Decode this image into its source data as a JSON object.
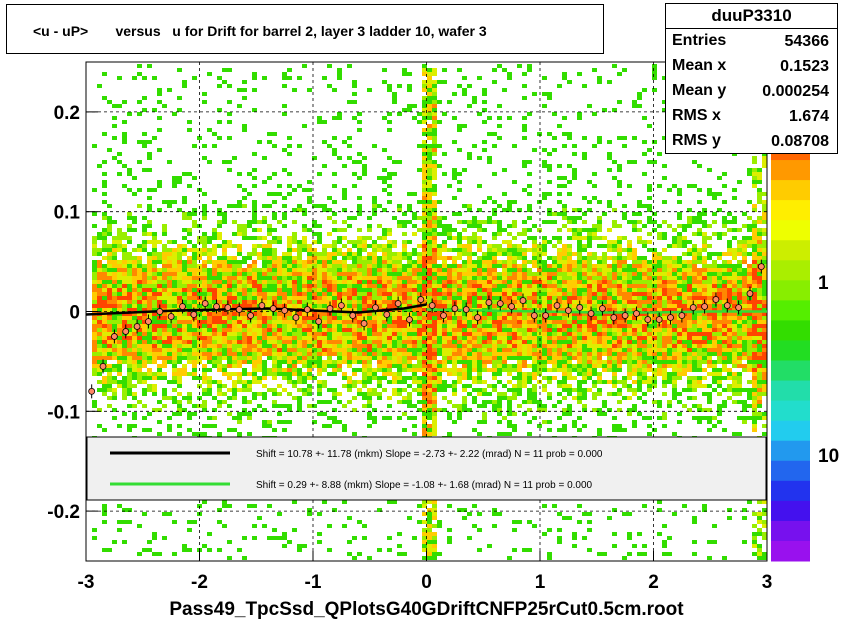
{
  "title": "<u - uP>       versus   u for Drift for barrel 2, layer 3 ladder 10, wafer 3",
  "stats": {
    "name": "duuP3310",
    "rows": [
      {
        "label": "Entries",
        "value": "54366"
      },
      {
        "label": "Mean x",
        "value": "0.1523"
      },
      {
        "label": "Mean y",
        "value": "0.000254"
      },
      {
        "label": "RMS x",
        "value": "1.674"
      },
      {
        "label": "RMS y",
        "value": "0.08708"
      }
    ]
  },
  "footer": "Pass49_TpcSsd_QPlotsG40GDriftCNFP25rCut0.5cm.root",
  "chart_data": {
    "type": "heatmap",
    "title": "<u - uP>       versus   u for Drift for barrel 2, layer 3 ladder 10, wafer 3",
    "xlabel": "",
    "ylabel": "",
    "xlim": [
      -3,
      3
    ],
    "ylim": [
      -0.25,
      0.25
    ],
    "x_ticks": [
      "-3",
      "-2",
      "-1",
      "0",
      "1",
      "2",
      "3"
    ],
    "y_ticks": [
      "-0.2",
      "-0.1",
      "0",
      "0.1",
      "0.2"
    ],
    "colorbar_ticks": [
      "1",
      "10"
    ],
    "grid": true,
    "legend": {
      "placement": "bottom",
      "entries": [
        {
          "color": "#000000",
          "text": "Shift =    10.78 +- 11.78 (mkm) Slope =    -2.73 +- 2.22 (mrad)  N = 11 prob = 0.000"
        },
        {
          "color": "#33dd33",
          "text": "Shift =    0.29 +- 8.88 (mkm) Slope =    -1.08 +- 1.68 (mrad)  N = 11 prob = 0.000"
        }
      ]
    },
    "series": [
      {
        "color": "#000000",
        "x": [
          -3.0,
          -2.6,
          -2.2,
          -1.8,
          -1.4,
          -1.0,
          -0.6,
          -0.2,
          0.0
        ],
        "y": [
          -0.003,
          -0.001,
          0.001,
          0.002,
          0.003,
          0.001,
          -0.001,
          0.003,
          0.007
        ]
      },
      {
        "color": "#33dd33",
        "x": [
          0.0,
          0.5,
          1.0,
          1.5,
          2.0,
          2.5,
          3.0
        ],
        "y": [
          0.002,
          0.001,
          0.0,
          -0.001,
          -0.001,
          0.0,
          0.0
        ]
      }
    ],
    "profile_points": {
      "x": [
        -2.95,
        -2.85,
        -2.75,
        -2.65,
        -2.55,
        -2.45,
        -2.35,
        -2.25,
        -2.15,
        -2.05,
        -1.95,
        -1.85,
        -1.75,
        -1.65,
        -1.55,
        -1.45,
        -1.35,
        -1.25,
        -1.15,
        -1.05,
        -0.95,
        -0.85,
        -0.75,
        -0.65,
        -0.55,
        -0.45,
        -0.35,
        -0.25,
        -0.15,
        -0.05,
        0.05,
        0.15,
        0.25,
        0.35,
        0.45,
        0.55,
        0.65,
        0.75,
        0.85,
        0.95,
        1.05,
        1.15,
        1.25,
        1.35,
        1.45,
        1.55,
        1.65,
        1.75,
        1.85,
        1.95,
        2.05,
        2.15,
        2.25,
        2.35,
        2.45,
        2.55,
        2.65,
        2.75,
        2.85,
        2.95
      ],
      "y": [
        -0.08,
        -0.055,
        -0.025,
        -0.02,
        -0.015,
        -0.01,
        0.0,
        -0.005,
        0.005,
        -0.003,
        0.008,
        0.005,
        0.004,
        0.002,
        -0.004,
        0.006,
        0.003,
        0.001,
        -0.006,
        0.002,
        -0.01,
        0.003,
        0.006,
        -0.004,
        -0.012,
        0.004,
        -0.003,
        0.008,
        -0.008,
        0.012,
        0.006,
        -0.004,
        0.003,
        0.002,
        -0.006,
        0.009,
        0.008,
        0.005,
        0.011,
        -0.004,
        -0.004,
        0.006,
        0.001,
        0.004,
        -0.002,
        0.003,
        -0.006,
        -0.004,
        -0.002,
        -0.008,
        -0.008,
        -0.006,
        -0.004,
        0.004,
        0.005,
        0.012,
        0.006,
        0.004,
        0.018,
        0.045
      ]
    }
  }
}
